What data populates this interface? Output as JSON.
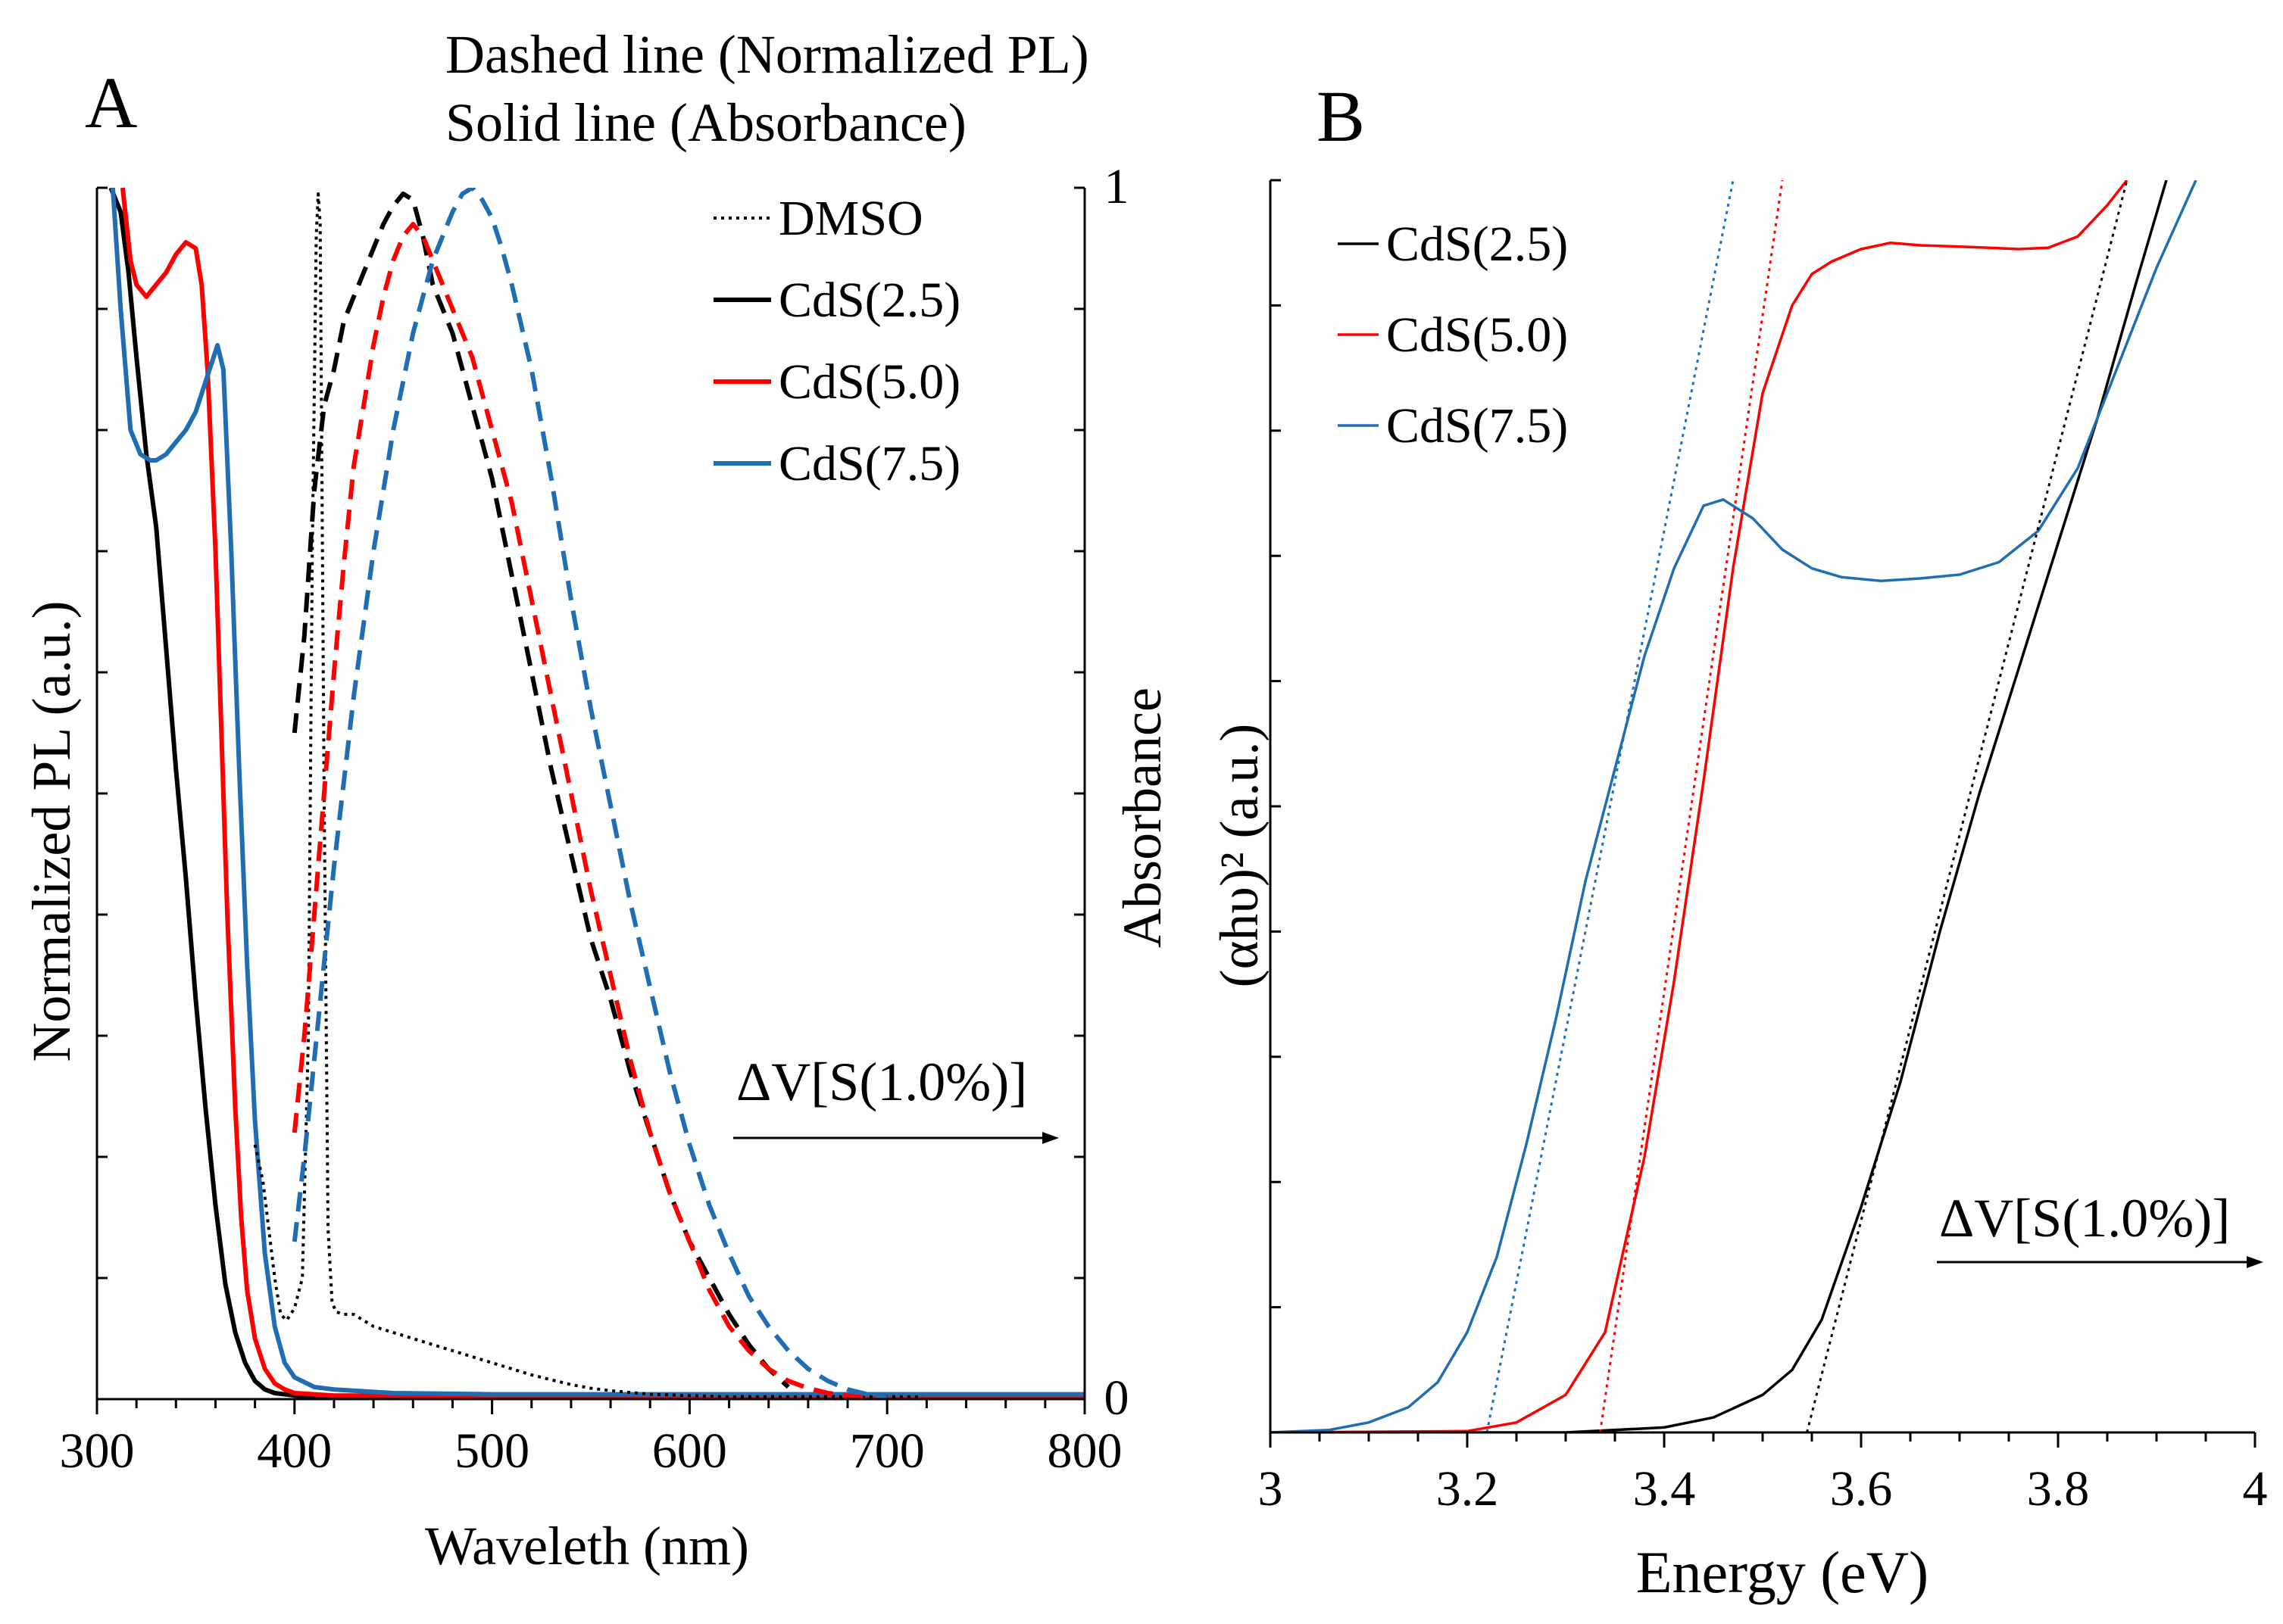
{
  "chart_data": [
    {
      "panel_label": "A",
      "type": "line",
      "title": [
        "Dashed line (Normalized PL)",
        "Solid line (Absorbance)"
      ],
      "xlabel": "Waveleth (nm)",
      "ylabel_left": "Normalized PL (a.u.)",
      "ylabel_right": "Absorbance",
      "xlim": [
        300,
        800
      ],
      "ylim": [
        0,
        1
      ],
      "x_ticks": [
        "300",
        "400",
        "500",
        "600",
        "700",
        "800"
      ],
      "y_right_ticks": [
        "0",
        "1"
      ],
      "annotation": "ΔV[S(1.0%)]",
      "legend": {
        "position": "top-right",
        "entries": [
          {
            "label": "DMSO",
            "color": "#000000",
            "style": "dotted"
          },
          {
            "label": "CdS(2.5)",
            "color": "#000000",
            "style": "solid"
          },
          {
            "label": "CdS(5.0)",
            "color": "#ff0000",
            "style": "solid"
          },
          {
            "label": "CdS(7.5)",
            "color": "#1f6db5",
            "style": "solid"
          }
        ]
      },
      "series": [
        {
          "name": "CdS(2.5) absorbance",
          "color": "#000000",
          "dash": "solid",
          "x": [
            307,
            312,
            316,
            320,
            325,
            330,
            335,
            340,
            345,
            350,
            355,
            360,
            365,
            370,
            375,
            380,
            385,
            390,
            400,
            420,
            450,
            500,
            600,
            700,
            800
          ],
          "y": [
            1.0,
            0.98,
            0.93,
            0.86,
            0.78,
            0.72,
            0.62,
            0.52,
            0.43,
            0.33,
            0.24,
            0.16,
            0.095,
            0.055,
            0.03,
            0.015,
            0.008,
            0.005,
            0.003,
            0.002,
            0.002,
            0.0015,
            0.001,
            0.001,
            0.001
          ]
        },
        {
          "name": "CdS(5.0) absorbance",
          "color": "#ff0000",
          "dash": "solid",
          "x": [
            313,
            317,
            320,
            325,
            330,
            335,
            340,
            345,
            350,
            353,
            356,
            360,
            363,
            366,
            370,
            373,
            376,
            380,
            385,
            390,
            395,
            400,
            420,
            450,
            500,
            600,
            700,
            800
          ],
          "y": [
            1.0,
            0.94,
            0.92,
            0.91,
            0.92,
            0.93,
            0.945,
            0.955,
            0.95,
            0.92,
            0.85,
            0.7,
            0.55,
            0.4,
            0.24,
            0.15,
            0.09,
            0.05,
            0.025,
            0.013,
            0.008,
            0.005,
            0.003,
            0.003,
            0.002,
            0.002,
            0.002,
            0.002
          ]
        },
        {
          "name": "CdS(7.5) absorbance",
          "color": "#1f6db5",
          "dash": "solid",
          "x": [
            308,
            312,
            317,
            322,
            327,
            330,
            335,
            340,
            345,
            350,
            355,
            358,
            361,
            364,
            368,
            372,
            376,
            380,
            385,
            390,
            395,
            400,
            410,
            420,
            450,
            500,
            600,
            700,
            800
          ],
          "y": [
            1.0,
            0.9,
            0.8,
            0.78,
            0.775,
            0.775,
            0.78,
            0.79,
            0.8,
            0.815,
            0.84,
            0.855,
            0.87,
            0.85,
            0.7,
            0.52,
            0.36,
            0.23,
            0.12,
            0.06,
            0.03,
            0.018,
            0.01,
            0.008,
            0.005,
            0.004,
            0.004,
            0.004,
            0.004
          ]
        },
        {
          "name": "DMSO PL",
          "color": "#000000",
          "dash": "dotted",
          "x": [
            380,
            384,
            387,
            390,
            393,
            396,
            400,
            404,
            407,
            409,
            411,
            412,
            413,
            415,
            417,
            419,
            421,
            425,
            430,
            440,
            450,
            460,
            470,
            480,
            490,
            500,
            510,
            520,
            530,
            540,
            550,
            560,
            580,
            600,
            620,
            640,
            660,
            680,
            700,
            718
          ],
          "y": [
            0.21,
            0.18,
            0.14,
            0.1,
            0.07,
            0.065,
            0.075,
            0.1,
            0.3,
            0.7,
            0.96,
            0.995,
            0.97,
            0.5,
            0.14,
            0.08,
            0.072,
            0.07,
            0.07,
            0.06,
            0.055,
            0.05,
            0.045,
            0.04,
            0.035,
            0.03,
            0.025,
            0.02,
            0.016,
            0.012,
            0.009,
            0.007,
            0.004,
            0.003,
            0.002,
            0.002,
            0.002,
            0.002,
            0.002,
            0.002
          ]
        },
        {
          "name": "CdS(2.5) PL",
          "color": "#000000",
          "dash": "dashed",
          "x": [
            400,
            405,
            410,
            415,
            420,
            425,
            430,
            435,
            440,
            445,
            450,
            455,
            460,
            465,
            470,
            475,
            480,
            485,
            490,
            495,
            500,
            510,
            520,
            530,
            540,
            550,
            560,
            570,
            580,
            590,
            600,
            610,
            620,
            630,
            640,
            650
          ],
          "y": [
            0.55,
            0.63,
            0.75,
            0.82,
            0.85,
            0.89,
            0.91,
            0.93,
            0.95,
            0.97,
            0.985,
            0.995,
            0.99,
            0.96,
            0.92,
            0.9,
            0.88,
            0.85,
            0.82,
            0.79,
            0.76,
            0.68,
            0.6,
            0.52,
            0.45,
            0.38,
            0.33,
            0.27,
            0.22,
            0.17,
            0.13,
            0.1,
            0.07,
            0.045,
            0.025,
            0.01
          ]
        },
        {
          "name": "CdS(5.0) PL",
          "color": "#ff0000",
          "dash": "dashed",
          "x": [
            400,
            405,
            410,
            415,
            420,
            425,
            430,
            435,
            440,
            445,
            450,
            455,
            460,
            465,
            470,
            475,
            480,
            485,
            490,
            500,
            510,
            520,
            530,
            540,
            550,
            560,
            570,
            580,
            590,
            600,
            610,
            620,
            630,
            640,
            650,
            660,
            670,
            680,
            690
          ],
          "y": [
            0.22,
            0.3,
            0.4,
            0.5,
            0.6,
            0.69,
            0.77,
            0.82,
            0.87,
            0.91,
            0.94,
            0.96,
            0.97,
            0.96,
            0.94,
            0.92,
            0.9,
            0.88,
            0.86,
            0.8,
            0.74,
            0.66,
            0.58,
            0.5,
            0.42,
            0.35,
            0.28,
            0.22,
            0.17,
            0.13,
            0.09,
            0.06,
            0.04,
            0.025,
            0.015,
            0.009,
            0.005,
            0.003,
            0.001
          ]
        },
        {
          "name": "CdS(7.5) PL",
          "color": "#1f6db5",
          "dash": "dashed",
          "x": [
            400,
            405,
            410,
            415,
            420,
            430,
            440,
            450,
            460,
            470,
            480,
            485,
            490,
            495,
            500,
            505,
            510,
            520,
            530,
            540,
            550,
            560,
            570,
            580,
            590,
            600,
            610,
            620,
            630,
            640,
            650,
            660,
            670,
            680,
            690,
            700
          ],
          "y": [
            0.13,
            0.2,
            0.28,
            0.36,
            0.44,
            0.58,
            0.7,
            0.8,
            0.88,
            0.94,
            0.98,
            0.995,
            1.0,
            0.99,
            0.975,
            0.95,
            0.92,
            0.85,
            0.76,
            0.66,
            0.57,
            0.49,
            0.41,
            0.34,
            0.27,
            0.21,
            0.16,
            0.12,
            0.085,
            0.06,
            0.04,
            0.025,
            0.015,
            0.008,
            0.004,
            0.001
          ]
        }
      ]
    },
    {
      "panel_label": "B",
      "type": "line",
      "xlabel": "Energy (eV)",
      "ylabel": "(αhυ)² (a.u.)",
      "xlim": [
        3.0,
        4.0
      ],
      "ylim": [
        0,
        1
      ],
      "x_ticks": [
        "3",
        "3.2",
        "3.4",
        "3.6",
        "3.8",
        "4"
      ],
      "annotation": "ΔV[S(1.0%)]",
      "legend": {
        "position": "top-left",
        "entries": [
          {
            "label": "CdS(2.5)",
            "color": "#000000",
            "style": "solid"
          },
          {
            "label": "CdS(5.0)",
            "color": "#ff0000",
            "style": "solid"
          },
          {
            "label": "CdS(7.5)",
            "color": "#1f6db5",
            "style": "solid"
          }
        ]
      },
      "series": [
        {
          "name": "CdS(2.5)",
          "color": "#000000",
          "dash": "solid",
          "x": [
            3.0,
            3.3,
            3.4,
            3.45,
            3.5,
            3.53,
            3.56,
            3.6,
            3.64,
            3.68,
            3.72,
            3.76,
            3.8,
            3.84,
            3.88,
            3.91
          ],
          "y": [
            0.0,
            0.0,
            0.004,
            0.012,
            0.03,
            0.05,
            0.09,
            0.18,
            0.28,
            0.4,
            0.51,
            0.61,
            0.71,
            0.81,
            0.92,
            1.0
          ]
        },
        {
          "name": "CdS(5.0)",
          "color": "#ff0000",
          "dash": "solid",
          "x": [
            3.0,
            3.2,
            3.25,
            3.3,
            3.34,
            3.38,
            3.41,
            3.44,
            3.47,
            3.5,
            3.53,
            3.55,
            3.57,
            3.6,
            3.63,
            3.66,
            3.7,
            3.73,
            3.76,
            3.79,
            3.82,
            3.85,
            3.87
          ],
          "y": [
            0.0,
            0.001,
            0.008,
            0.03,
            0.08,
            0.22,
            0.36,
            0.52,
            0.69,
            0.83,
            0.9,
            0.925,
            0.935,
            0.945,
            0.95,
            0.948,
            0.947,
            0.946,
            0.945,
            0.946,
            0.955,
            0.98,
            1.0
          ]
        },
        {
          "name": "CdS(7.5)",
          "color": "#1f6db5",
          "dash": "solid",
          "x": [
            3.0,
            3.06,
            3.1,
            3.14,
            3.17,
            3.2,
            3.23,
            3.26,
            3.29,
            3.32,
            3.35,
            3.38,
            3.41,
            3.44,
            3.46,
            3.49,
            3.52,
            3.55,
            3.58,
            3.62,
            3.66,
            3.7,
            3.74,
            3.78,
            3.82,
            3.86,
            3.9,
            3.94
          ],
          "y": [
            0.0,
            0.002,
            0.008,
            0.02,
            0.04,
            0.08,
            0.14,
            0.23,
            0.33,
            0.44,
            0.53,
            0.62,
            0.69,
            0.74,
            0.745,
            0.73,
            0.705,
            0.69,
            0.683,
            0.68,
            0.682,
            0.685,
            0.695,
            0.72,
            0.77,
            0.85,
            0.93,
            1.0
          ]
        },
        {
          "name": "CdS(2.5) tangent",
          "color": "#000000",
          "dash": "dotted",
          "x": [
            3.545,
            3.87
          ],
          "y": [
            0.0,
            1.0
          ]
        },
        {
          "name": "CdS(5.0) tangent",
          "color": "#ff0000",
          "dash": "dotted",
          "x": [
            3.335,
            3.52
          ],
          "y": [
            0.0,
            1.0
          ]
        },
        {
          "name": "CdS(7.5) tangent",
          "color": "#1f6db5",
          "dash": "dotted",
          "x": [
            3.22,
            3.47
          ],
          "y": [
            0.0,
            1.0
          ]
        }
      ]
    }
  ]
}
